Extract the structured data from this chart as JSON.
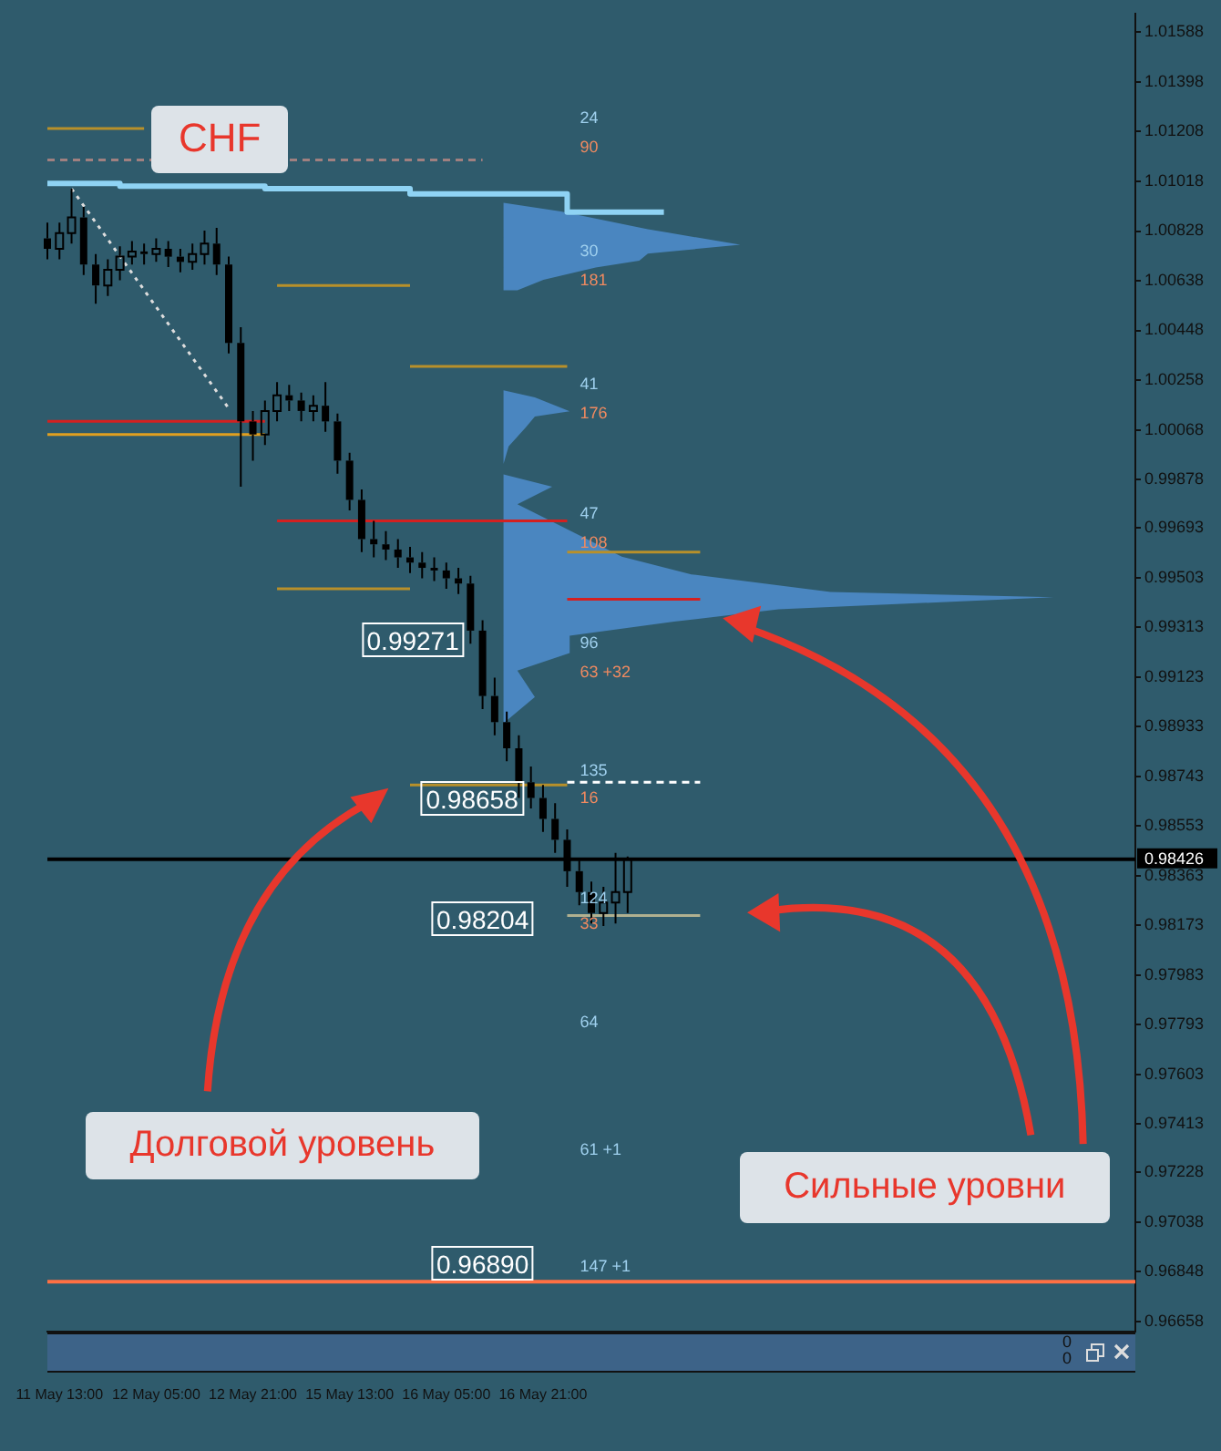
{
  "chart_data": {
    "type": "candlestick",
    "categories": [
      null,
      "11 May 13:00",
      null,
      null,
      null,
      null,
      null,
      null,
      null,
      "12 May 05:00",
      null,
      null,
      null,
      null,
      null,
      null,
      null,
      "12 May 21:00",
      null,
      null,
      null,
      null,
      null,
      null,
      null,
      "15 May 13:00",
      null,
      null,
      null,
      null,
      null,
      null,
      null,
      "16 May 05:00",
      null,
      null,
      null,
      null,
      null,
      null,
      null,
      "16 May 21:00",
      null,
      null,
      null,
      null,
      null,
      null,
      null,
      null,
      null,
      null,
      null,
      null,
      null,
      null,
      null,
      null,
      null,
      null,
      null,
      null,
      null,
      null,
      null,
      null,
      null,
      null,
      null,
      null,
      null,
      null,
      null,
      null,
      null,
      null,
      null,
      null,
      null,
      null,
      null,
      null,
      null,
      null,
      null,
      null,
      null,
      null,
      null,
      null,
      null
    ],
    "ohlc": [
      [
        1.008,
        1.0086,
        1.0072,
        1.0076
      ],
      [
        1.0076,
        1.0086,
        1.0072,
        1.0082
      ],
      [
        1.0082,
        1.0099,
        1.0078,
        1.0088
      ],
      [
        1.0088,
        1.0092,
        1.0066,
        1.007
      ],
      [
        1.007,
        1.0074,
        1.0055,
        1.0062
      ],
      [
        1.0062,
        1.0072,
        1.0058,
        1.0068
      ],
      [
        1.0068,
        1.0077,
        1.0064,
        1.0073
      ],
      [
        1.0073,
        1.0079,
        1.007,
        1.0075
      ],
      [
        1.0075,
        1.0078,
        1.007,
        1.0074
      ],
      [
        1.0074,
        1.008,
        1.0071,
        1.0076
      ],
      [
        1.0076,
        1.0079,
        1.0069,
        1.0073
      ],
      [
        1.0073,
        1.0076,
        1.0067,
        1.0071
      ],
      [
        1.0071,
        1.0078,
        1.0068,
        1.0074
      ],
      [
        1.0074,
        1.0083,
        1.007,
        1.0078
      ],
      [
        1.0078,
        1.0084,
        1.0066,
        1.007
      ],
      [
        1.007,
        1.0073,
        1.0036,
        1.004
      ],
      [
        1.004,
        1.0046,
        0.9985,
        1.001
      ],
      [
        1.001,
        1.0014,
        0.9995,
        1.0005
      ],
      [
        1.0005,
        1.0018,
        1.0001,
        1.0014
      ],
      [
        1.0014,
        1.0025,
        1.001,
        1.002
      ],
      [
        1.002,
        1.0024,
        1.0014,
        1.0018
      ],
      [
        1.0018,
        1.0021,
        1.001,
        1.0014
      ],
      [
        1.0014,
        1.002,
        1.001,
        1.0016
      ],
      [
        1.0016,
        1.0025,
        1.0006,
        1.001
      ],
      [
        1.001,
        1.0013,
        0.999,
        0.9995
      ],
      [
        0.9995,
        0.9998,
        0.9976,
        0.998
      ],
      [
        0.998,
        0.9984,
        0.996,
        0.9965
      ],
      [
        0.9965,
        0.9972,
        0.9958,
        0.9963
      ],
      [
        0.9963,
        0.9968,
        0.9957,
        0.9961
      ],
      [
        0.9961,
        0.9965,
        0.9954,
        0.9958
      ],
      [
        0.9958,
        0.9962,
        0.9952,
        0.9956
      ],
      [
        0.9956,
        0.996,
        0.995,
        0.9954
      ],
      [
        0.9954,
        0.9958,
        0.9949,
        0.9953
      ],
      [
        0.9953,
        0.9956,
        0.9946,
        0.995
      ],
      [
        0.995,
        0.9954,
        0.9944,
        0.9948
      ],
      [
        0.9948,
        0.9951,
        0.9925,
        0.993
      ],
      [
        0.993,
        0.9934,
        0.99,
        0.9905
      ],
      [
        0.9905,
        0.9912,
        0.989,
        0.9895
      ],
      [
        0.9895,
        0.9899,
        0.988,
        0.9885
      ],
      [
        0.9885,
        0.989,
        0.9866,
        0.9872
      ],
      [
        0.9872,
        0.9878,
        0.9862,
        0.9866
      ],
      [
        0.9866,
        0.9871,
        0.9853,
        0.9858
      ],
      [
        0.9858,
        0.9864,
        0.9845,
        0.985
      ],
      [
        0.985,
        0.9854,
        0.9832,
        0.9838
      ],
      [
        0.9838,
        0.9842,
        0.9825,
        0.983
      ],
      [
        0.983,
        0.9834,
        0.9818,
        0.9822
      ],
      [
        0.9822,
        0.9832,
        0.9817,
        0.9826
      ],
      [
        0.9826,
        0.9845,
        0.9818,
        0.983
      ],
      [
        0.983,
        0.98436,
        0.9822,
        0.98426
      ],
      null,
      null,
      null,
      null,
      null,
      null,
      null,
      null,
      null,
      null,
      null,
      null,
      null,
      null,
      null,
      null,
      null,
      null,
      null,
      null,
      null,
      null,
      null,
      null,
      null,
      null,
      null,
      null,
      null,
      null,
      null,
      null,
      null,
      null,
      null,
      null,
      null,
      null,
      null,
      null,
      null,
      null
    ],
    "color": "#000000",
    "series": [
      {
        "type": "step",
        "color": "#8fd3f4",
        "values": [
          1.0101,
          null,
          null,
          null,
          null,
          null,
          1.01,
          null,
          null,
          null,
          null,
          null,
          null,
          null,
          null,
          null,
          null,
          null,
          1.0099,
          null,
          null,
          null,
          null,
          null,
          null,
          null,
          null,
          null,
          null,
          null,
          1.0097,
          null,
          null,
          null,
          null,
          null,
          null,
          null,
          null,
          null,
          null,
          null,
          null,
          1.009,
          null,
          null,
          null,
          null,
          null,
          null,
          null,
          1.009,
          null,
          null,
          null,
          null,
          null,
          null,
          null,
          null,
          null,
          null,
          null,
          null,
          null,
          null,
          null,
          null,
          null,
          null,
          null,
          null,
          null,
          null,
          null,
          null,
          null,
          null,
          null,
          null,
          null,
          null,
          null,
          null,
          null,
          null,
          null,
          null,
          null,
          null,
          null
        ]
      },
      {
        "type": "line",
        "color": "#b8902a",
        "values": [
          1.0122,
          null,
          null,
          null,
          null,
          null,
          null,
          null,
          1.0122,
          null,
          null,
          null,
          null,
          null,
          null,
          null,
          null,
          null,
          null,
          null,
          null,
          null,
          null,
          null,
          null,
          null,
          null,
          null,
          null,
          null,
          null,
          null,
          null,
          null,
          null,
          null,
          null,
          null,
          null,
          null,
          null,
          null,
          null,
          null,
          null,
          null,
          null,
          null,
          null,
          null,
          null,
          null,
          null,
          null,
          null,
          null,
          null,
          null,
          null,
          null,
          null,
          null,
          null,
          null,
          null,
          null,
          null,
          null,
          null,
          null,
          null,
          null,
          null,
          null,
          null,
          null,
          null,
          null,
          null,
          null,
          null,
          null,
          null,
          null,
          null,
          null,
          null,
          null,
          null,
          null,
          null
        ]
      },
      {
        "type": "line",
        "color": "#d42020",
        "values": [
          1.001,
          null,
          null,
          null,
          null,
          null,
          null,
          null,
          null,
          null,
          null,
          null,
          null,
          null,
          null,
          null,
          null,
          null,
          1.001,
          null,
          null,
          null,
          null,
          null,
          null,
          null,
          null,
          null,
          null,
          null,
          null,
          null,
          null,
          null,
          null,
          null,
          null,
          null,
          null,
          null,
          null,
          null,
          null,
          null,
          null,
          null,
          null,
          null,
          null,
          null,
          null,
          null,
          null,
          null,
          null,
          null,
          null,
          null,
          null,
          null,
          null,
          null,
          null,
          null,
          null,
          null,
          null,
          null,
          null,
          null,
          null,
          null,
          null,
          null,
          null,
          null,
          null,
          null,
          null,
          null,
          null,
          null,
          null,
          null,
          null,
          null,
          null,
          null,
          null,
          null,
          null
        ]
      },
      {
        "type": "line",
        "color": "#e0a020",
        "values": [
          1.0005,
          null,
          null,
          null,
          null,
          null,
          null,
          null,
          null,
          null,
          null,
          null,
          null,
          null,
          null,
          null,
          null,
          null,
          1.0005,
          null,
          null,
          null,
          null,
          null,
          null,
          null,
          null,
          null,
          null,
          null,
          null,
          null,
          null,
          null,
          null,
          null,
          null,
          null,
          null,
          null,
          null,
          null,
          null,
          null,
          null,
          null,
          null,
          null,
          null,
          null,
          null,
          null,
          null,
          null,
          null,
          null,
          null,
          null,
          null,
          null,
          null,
          null,
          null,
          null,
          null,
          null,
          null,
          null,
          null,
          null,
          null,
          null,
          null,
          null,
          null,
          null,
          null,
          null,
          null,
          null,
          null,
          null,
          null,
          null,
          null,
          null,
          null,
          null,
          null,
          null,
          null
        ]
      },
      {
        "type": "line",
        "color": "#b8902a",
        "values": [
          null,
          null,
          null,
          null,
          null,
          null,
          null,
          null,
          null,
          null,
          null,
          null,
          null,
          null,
          null,
          null,
          null,
          null,
          null,
          1.0062,
          null,
          null,
          null,
          null,
          null,
          null,
          null,
          null,
          null,
          null,
          1.0062,
          null,
          null,
          null,
          null,
          null,
          null,
          null,
          null,
          null,
          null,
          null,
          null,
          null,
          null,
          null,
          null,
          null,
          null,
          null,
          null,
          null,
          null,
          null,
          null,
          null,
          null,
          null,
          null,
          null,
          null,
          null,
          null,
          null,
          null,
          null,
          null,
          null,
          null,
          null,
          null,
          null,
          null,
          null,
          null,
          null,
          null,
          null,
          null,
          null,
          null,
          null,
          null,
          null,
          null,
          null,
          null,
          null,
          null,
          null,
          null
        ]
      },
      {
        "type": "line",
        "color": "#b8902a",
        "values": [
          null,
          null,
          null,
          null,
          null,
          null,
          null,
          null,
          null,
          null,
          null,
          null,
          null,
          null,
          null,
          null,
          null,
          null,
          null,
          0.9946,
          null,
          null,
          null,
          null,
          null,
          null,
          null,
          null,
          null,
          null,
          0.9946,
          null,
          null,
          null,
          null,
          null,
          null,
          null,
          null,
          null,
          null,
          null,
          null,
          null,
          null,
          null,
          null,
          null,
          null,
          null,
          null,
          null,
          null,
          null,
          null,
          null,
          null,
          null,
          null,
          null,
          null,
          null,
          null,
          null,
          null,
          null,
          null,
          null,
          null,
          null,
          null,
          null,
          null,
          null,
          null,
          null,
          null,
          null,
          null,
          null,
          null,
          null,
          null,
          null,
          null,
          null,
          null,
          null,
          null,
          null,
          null
        ]
      },
      {
        "type": "line",
        "color": "#d42020",
        "values": [
          null,
          null,
          null,
          null,
          null,
          null,
          null,
          null,
          null,
          null,
          null,
          null,
          null,
          null,
          null,
          null,
          null,
          null,
          null,
          0.9972,
          null,
          null,
          null,
          null,
          null,
          null,
          null,
          null,
          null,
          null,
          null,
          null,
          null,
          null,
          null,
          null,
          null,
          null,
          null,
          null,
          null,
          null,
          null,
          0.9972,
          null,
          null,
          null,
          null,
          null,
          null,
          null,
          null,
          null,
          null,
          null,
          null,
          null,
          null,
          null,
          null,
          null,
          null,
          null,
          null,
          null,
          null,
          null,
          null,
          null,
          null,
          null,
          null,
          null,
          null,
          null,
          null,
          null,
          null,
          null,
          null,
          null,
          null,
          null,
          null,
          null,
          null,
          null,
          null,
          null,
          null,
          null
        ]
      },
      {
        "type": "line",
        "color": "#b8902a",
        "values": [
          null,
          null,
          null,
          null,
          null,
          null,
          null,
          null,
          null,
          null,
          null,
          null,
          null,
          null,
          null,
          null,
          null,
          null,
          null,
          null,
          null,
          null,
          null,
          null,
          null,
          null,
          null,
          null,
          null,
          null,
          1.0031,
          null,
          null,
          null,
          null,
          null,
          null,
          null,
          null,
          null,
          null,
          null,
          null,
          1.0031,
          null,
          null,
          null,
          null,
          null,
          null,
          null,
          null,
          null,
          null,
          null,
          null,
          null,
          null,
          null,
          null,
          null,
          null,
          null,
          null,
          null,
          null,
          null,
          null,
          null,
          null,
          null,
          null,
          null,
          null,
          null,
          null,
          null,
          null,
          null,
          null,
          null,
          null,
          null,
          null,
          null,
          null,
          null,
          null,
          null,
          null,
          null
        ]
      },
      {
        "type": "line",
        "color": "#b8902a",
        "values": [
          null,
          null,
          null,
          null,
          null,
          null,
          null,
          null,
          null,
          null,
          null,
          null,
          null,
          null,
          null,
          null,
          null,
          null,
          null,
          null,
          null,
          null,
          null,
          null,
          null,
          null,
          null,
          null,
          null,
          null,
          0.9871,
          null,
          null,
          null,
          null,
          null,
          null,
          null,
          null,
          null,
          null,
          null,
          null,
          0.9871,
          null,
          null,
          null,
          null,
          null,
          null,
          null,
          null,
          null,
          null,
          null,
          null,
          null,
          null,
          null,
          null,
          null,
          null,
          null,
          null,
          null,
          null,
          null,
          null,
          null,
          null,
          null,
          null,
          null,
          null,
          null,
          null,
          null,
          null,
          null,
          null,
          null,
          null,
          null,
          null,
          null,
          null,
          null,
          null,
          null,
          null,
          null
        ]
      },
      {
        "type": "line",
        "color": "#d42020",
        "values": [
          null,
          null,
          null,
          null,
          null,
          null,
          null,
          null,
          null,
          null,
          null,
          null,
          null,
          null,
          null,
          null,
          null,
          null,
          null,
          null,
          null,
          null,
          null,
          null,
          null,
          null,
          null,
          null,
          null,
          null,
          null,
          null,
          null,
          null,
          null,
          null,
          null,
          null,
          null,
          null,
          null,
          null,
          null,
          0.9942,
          null,
          null,
          null,
          null,
          null,
          null,
          null,
          null,
          null,
          null,
          0.9942,
          null,
          null,
          null,
          null,
          null,
          null,
          null,
          null,
          null,
          null,
          null,
          null,
          null,
          null,
          null,
          null,
          null,
          null,
          null,
          null,
          null,
          null,
          null,
          null,
          null,
          null,
          null,
          null,
          null,
          null,
          null,
          null,
          null,
          null,
          null,
          null
        ]
      },
      {
        "type": "line",
        "color": "#b8902a",
        "values": [
          null,
          null,
          null,
          null,
          null,
          null,
          null,
          null,
          null,
          null,
          null,
          null,
          null,
          null,
          null,
          null,
          null,
          null,
          null,
          null,
          null,
          null,
          null,
          null,
          null,
          null,
          null,
          null,
          null,
          null,
          null,
          null,
          null,
          null,
          null,
          null,
          null,
          null,
          null,
          null,
          null,
          null,
          null,
          0.996,
          null,
          null,
          null,
          null,
          null,
          null,
          null,
          null,
          null,
          null,
          0.996,
          null,
          null,
          null,
          null,
          null,
          null,
          null,
          null,
          null,
          null,
          null,
          null,
          null,
          null,
          null,
          null,
          null,
          null,
          null,
          null,
          null,
          null,
          null,
          null,
          null,
          null,
          null,
          null,
          null,
          null,
          null,
          null,
          null,
          null,
          null,
          null
        ]
      },
      {
        "type": "line",
        "color": "#b0b090",
        "values": [
          null,
          null,
          null,
          null,
          null,
          null,
          null,
          null,
          null,
          null,
          null,
          null,
          null,
          null,
          null,
          null,
          null,
          null,
          null,
          null,
          null,
          null,
          null,
          null,
          null,
          null,
          null,
          null,
          null,
          null,
          null,
          null,
          null,
          null,
          null,
          null,
          null,
          null,
          null,
          null,
          null,
          null,
          null,
          0.9821,
          null,
          null,
          null,
          null,
          null,
          null,
          null,
          null,
          null,
          null,
          0.9821,
          null,
          null,
          null,
          null,
          null,
          null,
          null,
          null,
          null,
          null,
          null,
          null,
          null,
          null,
          null,
          null,
          null,
          null,
          null,
          null,
          null,
          null,
          null,
          null,
          null,
          null,
          null,
          null,
          null,
          null,
          null,
          null,
          null,
          null,
          null,
          null
        ]
      },
      {
        "type": "line",
        "color": "#ffffff",
        "line_style": "dashed",
        "values": [
          null,
          null,
          null,
          null,
          null,
          null,
          null,
          null,
          null,
          null,
          null,
          null,
          null,
          null,
          null,
          null,
          null,
          null,
          null,
          null,
          null,
          null,
          null,
          null,
          null,
          null,
          null,
          null,
          null,
          null,
          null,
          null,
          null,
          null,
          null,
          null,
          null,
          null,
          null,
          null,
          null,
          null,
          null,
          0.9872,
          null,
          null,
          null,
          null,
          null,
          null,
          null,
          null,
          null,
          null,
          0.9872,
          null,
          null,
          null,
          null,
          null,
          null,
          null,
          null,
          null,
          null,
          null,
          null,
          null,
          null,
          null,
          null,
          null,
          null,
          null,
          null,
          null,
          null,
          null,
          null,
          null,
          null,
          null,
          null,
          null,
          null,
          null,
          null,
          null,
          null,
          null,
          null
        ]
      },
      {
        "type": "line",
        "color": "#a08080",
        "line_style": "dashed",
        "values": [
          1.011,
          null,
          null,
          null,
          null,
          null,
          null,
          null,
          null,
          null,
          null,
          null,
          null,
          null,
          null,
          null,
          null,
          null,
          null,
          null,
          null,
          null,
          null,
          null,
          null,
          null,
          null,
          null,
          null,
          null,
          null,
          null,
          null,
          null,
          null,
          null,
          1.011,
          null,
          null,
          null,
          null,
          null,
          null,
          null,
          null,
          null,
          null,
          null,
          null,
          null,
          null,
          null,
          null,
          null,
          null,
          null,
          null,
          null,
          null,
          null,
          null,
          null,
          null,
          null,
          null,
          null,
          null,
          null,
          null,
          null,
          null,
          null,
          null,
          null,
          null,
          null,
          null,
          null,
          null,
          null,
          null,
          null,
          null,
          null,
          null,
          null,
          null,
          null,
          null,
          null,
          null
        ]
      },
      {
        "type": "line",
        "color": "#dddddd",
        "line_style": "dotted",
        "values": [
          null,
          null,
          1.0099,
          null,
          null,
          null,
          null,
          null,
          null,
          null,
          null,
          null,
          null,
          null,
          null,
          1.0015,
          null,
          null,
          null,
          null,
          null,
          null,
          null,
          null,
          null,
          null,
          null,
          null,
          null,
          null,
          null,
          null,
          null,
          null,
          null,
          null,
          null,
          null,
          null,
          null,
          null,
          null,
          null,
          null,
          null,
          null,
          null,
          null,
          null,
          null,
          null,
          null,
          null,
          null,
          null,
          null,
          null,
          null,
          null,
          null,
          null,
          null,
          null,
          null,
          null,
          null,
          null,
          null,
          null,
          null,
          null,
          null,
          null,
          null,
          null,
          null,
          null,
          null,
          null,
          null,
          null,
          null,
          null,
          null,
          null,
          null,
          null,
          null,
          null,
          null,
          null
        ]
      }
    ],
    "ref_lines": [
      {
        "axis": "y",
        "value": 0.98426,
        "label": "0.98426",
        "color": "#000000"
      },
      {
        "axis": "y",
        "value": 0.9681,
        "color": "#ff7043"
      }
    ],
    "ylim": [
      0.9662,
      1.0166
    ],
    "yticks": [
      1.01588,
      1.01398,
      1.01208,
      1.01018,
      1.00828,
      1.00638,
      1.00448,
      1.00258,
      1.00068,
      0.99878,
      0.99693,
      0.99503,
      0.99313,
      0.99123,
      0.98933,
      0.98743,
      0.98553,
      0.98363,
      0.98173,
      0.97983,
      0.97793,
      0.97603,
      0.97413,
      0.97228,
      0.97038,
      0.96848,
      0.96658
    ],
    "annotations": [
      "0.99271",
      "0.98658",
      "0.98204",
      "0.96890",
      "24",
      "90",
      "30",
      "181",
      "41",
      "176",
      "47",
      "108",
      "96",
      "63 +32",
      "135",
      "16",
      "124",
      "33",
      "64",
      "61 +1",
      "147 +1",
      "CHF",
      "Долговой уровень",
      "Сильные уровни",
      "0",
      "0"
    ]
  }
}
